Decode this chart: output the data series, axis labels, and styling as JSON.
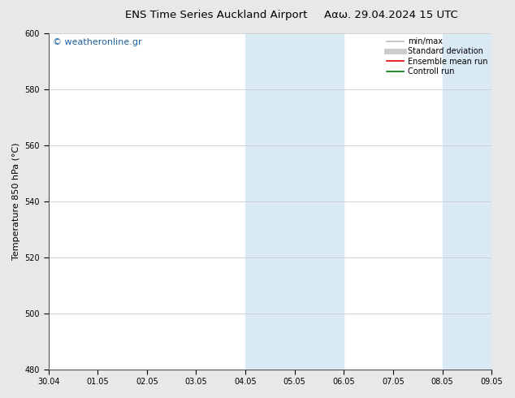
{
  "title_left": "ENS Time Series Auckland Airport",
  "title_right": "Ααω. 29.04.2024 15 UTC",
  "ylabel": "Temperature 850 hPa (°C)",
  "watermark": "© weatheronline.gr",
  "ylim": [
    480,
    600
  ],
  "yticks": [
    480,
    500,
    520,
    540,
    560,
    580,
    600
  ],
  "xtick_labels": [
    "30.04",
    "01.05",
    "02.05",
    "03.05",
    "04.05",
    "05.05",
    "06.05",
    "07.05",
    "08.05",
    "09.05"
  ],
  "shaded_regions": [
    {
      "xstart": 4.0,
      "xend": 6.0
    },
    {
      "xstart": 8.0,
      "xend": 9.0
    }
  ],
  "shaded_color": "#daeaf5",
  "legend_items": [
    {
      "label": "min/max",
      "color": "#bbbbbb",
      "lw": 1.2
    },
    {
      "label": "Standard deviation",
      "color": "#cccccc",
      "lw": 5
    },
    {
      "label": "Ensemble mean run",
      "color": "#dd0000",
      "lw": 1.2
    },
    {
      "label": "Controll run",
      "color": "#007700",
      "lw": 1.2
    }
  ],
  "bg_color": "#e8e8e8",
  "plot_bg_color": "#ffffff",
  "grid_color": "#cccccc",
  "title_fontsize": 9.5,
  "tick_fontsize": 7,
  "ylabel_fontsize": 8,
  "watermark_fontsize": 8,
  "legend_fontsize": 7
}
